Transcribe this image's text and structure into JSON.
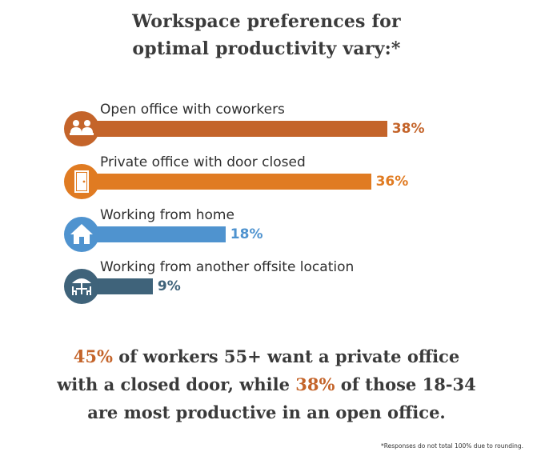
{
  "header": {
    "title_line1": "Workspace preferences for",
    "title_line2": "optimal productivity vary:*"
  },
  "chart_data": {
    "type": "bar",
    "orientation": "horizontal",
    "categories": [
      "Open office with coworkers",
      "Private office with door closed",
      "Working from home",
      "Working from another offsite location"
    ],
    "values": [
      38,
      36,
      18,
      9
    ],
    "value_labels": [
      "38%",
      "36%",
      "18%",
      "9%"
    ],
    "unit": "%",
    "colors": [
      "#c4642a",
      "#e07b22",
      "#4f93cf",
      "#3f637a"
    ],
    "icons": [
      "coworkers-icon",
      "door-icon",
      "house-icon",
      "cafe-table-icon"
    ],
    "grid": false,
    "legend": "none"
  },
  "summary": {
    "line1_highlight": "45%",
    "line1_rest": " of workers 55+ want a private office",
    "line2_start": "with a closed door, while ",
    "line2_highlight": "38%",
    "line2_rest": " of those 18-34",
    "line3": "are most productive in an open office."
  },
  "footnote": "*Responses do not total 100% due to rounding."
}
